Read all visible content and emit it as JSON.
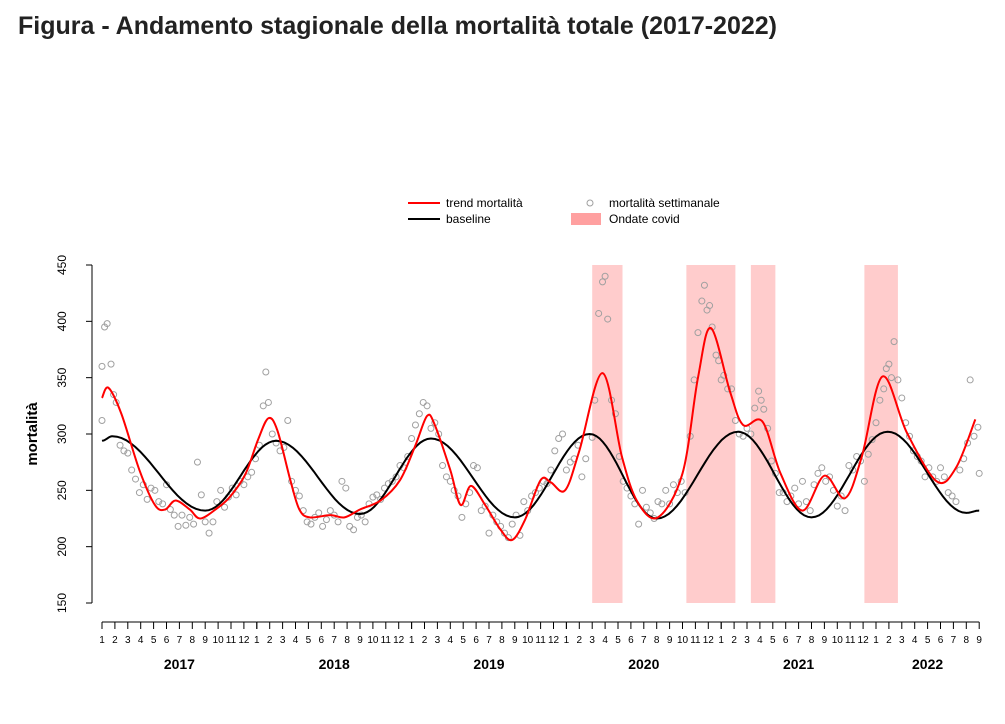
{
  "chart_data": {
    "type": "line",
    "title": "Figura - Andamento stagionale della mortalità totale (2017-2022)",
    "xlabel": "",
    "ylabel": "mortalità",
    "ylim": [
      150,
      450
    ],
    "yticks": [
      "150",
      "200",
      "250",
      "300",
      "350",
      "400",
      "450"
    ],
    "x_unit": "months since January 2017",
    "xlim": [
      0,
      68
    ],
    "years": [
      {
        "label": "2017",
        "months": [
          "1",
          "2",
          "3",
          "4",
          "5",
          "6",
          "7",
          "8",
          "9",
          "10",
          "11",
          "12"
        ]
      },
      {
        "label": "2018",
        "months": [
          "1",
          "2",
          "3",
          "4",
          "5",
          "6",
          "7",
          "8",
          "9",
          "10",
          "11",
          "12"
        ]
      },
      {
        "label": "2019",
        "months": [
          "1",
          "2",
          "3",
          "4",
          "5",
          "6",
          "7",
          "8",
          "9",
          "10",
          "11",
          "12"
        ]
      },
      {
        "label": "2020",
        "months": [
          "1",
          "2",
          "3",
          "4",
          "5",
          "6",
          "7",
          "8",
          "9",
          "10",
          "11",
          "12"
        ]
      },
      {
        "label": "2021",
        "months": [
          "1",
          "2",
          "3",
          "4",
          "5",
          "6",
          "7",
          "8",
          "9",
          "10",
          "11",
          "12"
        ]
      },
      {
        "label": "2022",
        "months": [
          "1",
          "2",
          "3",
          "4",
          "5",
          "6",
          "7",
          "8",
          "9"
        ]
      }
    ],
    "legend": {
      "placement": "top-center",
      "trend": "trend mortalità",
      "baseline": "baseline",
      "weekly": "mortalità settimanale",
      "covid": "Ondate covid"
    },
    "colors": {
      "trend": "#ff0000",
      "baseline": "#000000",
      "points": "#a0a0a0",
      "covid": "#ffcccc"
    },
    "covid_waves": [
      [
        38,
        40.35
      ],
      [
        45.3,
        49.1
      ],
      [
        50.3,
        52.2
      ],
      [
        59.1,
        61.7
      ]
    ],
    "trend": [
      [
        0,
        332
      ],
      [
        0.5,
        341
      ],
      [
        1.5,
        318
      ],
      [
        2.9,
        268
      ],
      [
        4.1,
        237
      ],
      [
        4.9,
        233
      ],
      [
        5.7,
        241
      ],
      [
        6.8,
        233
      ],
      [
        7.6,
        225
      ],
      [
        8.8,
        233
      ],
      [
        9.9,
        244
      ],
      [
        11.1,
        264
      ],
      [
        12.1,
        295
      ],
      [
        12.9,
        314
      ],
      [
        13.6,
        303
      ],
      [
        14.6,
        259
      ],
      [
        15.3,
        233
      ],
      [
        16.1,
        226
      ],
      [
        17.7,
        228
      ],
      [
        18.8,
        226
      ],
      [
        20,
        233
      ],
      [
        21.6,
        241
      ],
      [
        23.1,
        259
      ],
      [
        24.3,
        290
      ],
      [
        25.2,
        316
      ],
      [
        25.8,
        308
      ],
      [
        27,
        268
      ],
      [
        27.8,
        237
      ],
      [
        28.6,
        254
      ],
      [
        29.7,
        237
      ],
      [
        30.9,
        215
      ],
      [
        31.8,
        206
      ],
      [
        32.8,
        224
      ],
      [
        34,
        259
      ],
      [
        34.8,
        257
      ],
      [
        35.9,
        250
      ],
      [
        37,
        285
      ],
      [
        38.8,
        354
      ],
      [
        40.3,
        280
      ],
      [
        41.5,
        240
      ],
      [
        43.1,
        226
      ],
      [
        45,
        265
      ],
      [
        46.2,
        350
      ],
      [
        47.2,
        394
      ],
      [
        48.7,
        337
      ],
      [
        49.7,
        308
      ],
      [
        51.2,
        311
      ],
      [
        52.6,
        265
      ],
      [
        54.3,
        232
      ],
      [
        56,
        263
      ],
      [
        57.6,
        243
      ],
      [
        58.9,
        280
      ],
      [
        60.5,
        351
      ],
      [
        62.4,
        301
      ],
      [
        64.7,
        258
      ],
      [
        66.2,
        270
      ],
      [
        67.7,
        313
      ]
    ],
    "baseline": [
      [
        0,
        294
      ],
      [
        0.8,
        298
      ],
      [
        8,
        232
      ],
      [
        13.5,
        294
      ],
      [
        20,
        229
      ],
      [
        25.5,
        296
      ],
      [
        32,
        226
      ],
      [
        37.8,
        300
      ],
      [
        43,
        225
      ],
      [
        49.3,
        302
      ],
      [
        55,
        226
      ],
      [
        60.9,
        302
      ],
      [
        67,
        230
      ],
      [
        68,
        232
      ]
    ],
    "weekly": [
      [
        0,
        312
      ],
      [
        0,
        360
      ],
      [
        0.2,
        395
      ],
      [
        0.4,
        398
      ],
      [
        0.7,
        362
      ],
      [
        0.9,
        335
      ],
      [
        1.1,
        328
      ],
      [
        1.4,
        290
      ],
      [
        1.7,
        285
      ],
      [
        2,
        283
      ],
      [
        2.3,
        268
      ],
      [
        2.6,
        260
      ],
      [
        2.9,
        248
      ],
      [
        3.2,
        255
      ],
      [
        3.5,
        242
      ],
      [
        3.8,
        252
      ],
      [
        4.1,
        250
      ],
      [
        4.4,
        240
      ],
      [
        4.7,
        238
      ],
      [
        5,
        255
      ],
      [
        5.3,
        233
      ],
      [
        5.6,
        228
      ],
      [
        5.9,
        218
      ],
      [
        6.2,
        228
      ],
      [
        6.5,
        219
      ],
      [
        6.8,
        226
      ],
      [
        7.1,
        220
      ],
      [
        7.4,
        275
      ],
      [
        7.7,
        246
      ],
      [
        8,
        222
      ],
      [
        8.3,
        212
      ],
      [
        8.6,
        222
      ],
      [
        8.9,
        240
      ],
      [
        9.2,
        250
      ],
      [
        9.5,
        235
      ],
      [
        9.8,
        244
      ],
      [
        10.1,
        252
      ],
      [
        10.4,
        246
      ],
      [
        10.7,
        258
      ],
      [
        11,
        255
      ],
      [
        11.3,
        262
      ],
      [
        11.6,
        266
      ],
      [
        11.9,
        278
      ],
      [
        12.2,
        290
      ],
      [
        12.5,
        325
      ],
      [
        12.7,
        355
      ],
      [
        12.9,
        328
      ],
      [
        13.2,
        300
      ],
      [
        13.5,
        292
      ],
      [
        13.8,
        285
      ],
      [
        14.1,
        288
      ],
      [
        14.4,
        312
      ],
      [
        14.7,
        258
      ],
      [
        15,
        250
      ],
      [
        15.3,
        245
      ],
      [
        15.6,
        232
      ],
      [
        15.9,
        222
      ],
      [
        16.2,
        220
      ],
      [
        16.5,
        226
      ],
      [
        16.8,
        230
      ],
      [
        17.1,
        218
      ],
      [
        17.4,
        224
      ],
      [
        17.7,
        232
      ],
      [
        18,
        228
      ],
      [
        18.3,
        222
      ],
      [
        18.6,
        258
      ],
      [
        18.9,
        252
      ],
      [
        19.2,
        218
      ],
      [
        19.5,
        215
      ],
      [
        19.8,
        226
      ],
      [
        20.1,
        228
      ],
      [
        20.4,
        222
      ],
      [
        20.7,
        238
      ],
      [
        21,
        244
      ],
      [
        21.3,
        246
      ],
      [
        21.6,
        242
      ],
      [
        21.9,
        252
      ],
      [
        22.2,
        256
      ],
      [
        22.5,
        258
      ],
      [
        22.8,
        262
      ],
      [
        23.1,
        272
      ],
      [
        23.4,
        270
      ],
      [
        23.7,
        280
      ],
      [
        24,
        296
      ],
      [
        24.3,
        308
      ],
      [
        24.6,
        318
      ],
      [
        24.9,
        328
      ],
      [
        25.2,
        325
      ],
      [
        25.5,
        305
      ],
      [
        25.8,
        310
      ],
      [
        26.1,
        300
      ],
      [
        26.4,
        272
      ],
      [
        26.7,
        262
      ],
      [
        27,
        258
      ],
      [
        27.3,
        250
      ],
      [
        27.6,
        245
      ],
      [
        27.9,
        226
      ],
      [
        28.2,
        238
      ],
      [
        28.5,
        248
      ],
      [
        28.8,
        272
      ],
      [
        29.1,
        270
      ],
      [
        29.4,
        232
      ],
      [
        29.7,
        236
      ],
      [
        30,
        212
      ],
      [
        30.3,
        228
      ],
      [
        30.6,
        222
      ],
      [
        30.9,
        218
      ],
      [
        31.2,
        212
      ],
      [
        31.5,
        208
      ],
      [
        31.8,
        220
      ],
      [
        32.1,
        228
      ],
      [
        32.4,
        210
      ],
      [
        32.7,
        240
      ],
      [
        33,
        232
      ],
      [
        33.3,
        245
      ],
      [
        33.6,
        248
      ],
      [
        33.9,
        252
      ],
      [
        34.2,
        258
      ],
      [
        34.5,
        256
      ],
      [
        34.8,
        268
      ],
      [
        35.1,
        285
      ],
      [
        35.4,
        296
      ],
      [
        35.7,
        300
      ],
      [
        36,
        268
      ],
      [
        36.3,
        275
      ],
      [
        36.6,
        278
      ],
      [
        36.9,
        290
      ],
      [
        37.2,
        262
      ],
      [
        37.5,
        278
      ],
      [
        38,
        297
      ],
      [
        38.2,
        330
      ],
      [
        38.5,
        407
      ],
      [
        38.8,
        435
      ],
      [
        39,
        440
      ],
      [
        39.2,
        402
      ],
      [
        39.5,
        330
      ],
      [
        39.8,
        318
      ],
      [
        40.1,
        280
      ],
      [
        40.4,
        258
      ],
      [
        40.7,
        252
      ],
      [
        41,
        245
      ],
      [
        41.3,
        238
      ],
      [
        41.6,
        220
      ],
      [
        41.9,
        250
      ],
      [
        42.2,
        235
      ],
      [
        42.5,
        230
      ],
      [
        42.8,
        225
      ],
      [
        43.1,
        240
      ],
      [
        43.4,
        238
      ],
      [
        43.7,
        250
      ],
      [
        44,
        238
      ],
      [
        44.3,
        255
      ],
      [
        44.6,
        248
      ],
      [
        44.9,
        258
      ],
      [
        45.2,
        248
      ],
      [
        45.6,
        298
      ],
      [
        45.9,
        348
      ],
      [
        46.2,
        390
      ],
      [
        46.5,
        418
      ],
      [
        46.7,
        432
      ],
      [
        46.9,
        410
      ],
      [
        47.1,
        414
      ],
      [
        47.3,
        395
      ],
      [
        47.6,
        370
      ],
      [
        47.8,
        365
      ],
      [
        48,
        348
      ],
      [
        48.2,
        352
      ],
      [
        48.5,
        340
      ],
      [
        48.8,
        340
      ],
      [
        49.1,
        312
      ],
      [
        49.4,
        300
      ],
      [
        49.7,
        298
      ],
      [
        50,
        305
      ],
      [
        50.3,
        300
      ],
      [
        50.6,
        323
      ],
      [
        50.9,
        338
      ],
      [
        51.1,
        330
      ],
      [
        51.3,
        322
      ],
      [
        51.6,
        305
      ],
      [
        51.9,
        276
      ],
      [
        52.2,
        265
      ],
      [
        52.5,
        248
      ],
      [
        52.8,
        248
      ],
      [
        53.1,
        240
      ],
      [
        53.4,
        245
      ],
      [
        53.7,
        252
      ],
      [
        54,
        238
      ],
      [
        54.3,
        258
      ],
      [
        54.6,
        240
      ],
      [
        54.9,
        232
      ],
      [
        55.2,
        255
      ],
      [
        55.5,
        265
      ],
      [
        55.8,
        270
      ],
      [
        56.1,
        258
      ],
      [
        56.4,
        262
      ],
      [
        56.7,
        250
      ],
      [
        57,
        236
      ],
      [
        57.3,
        245
      ],
      [
        57.6,
        232
      ],
      [
        57.9,
        272
      ],
      [
        58.2,
        268
      ],
      [
        58.5,
        280
      ],
      [
        58.8,
        276
      ],
      [
        59.1,
        258
      ],
      [
        59.4,
        282
      ],
      [
        59.7,
        295
      ],
      [
        60,
        310
      ],
      [
        60.3,
        330
      ],
      [
        60.6,
        340
      ],
      [
        60.8,
        358
      ],
      [
        61,
        362
      ],
      [
        61.2,
        350
      ],
      [
        61.4,
        382
      ],
      [
        61.7,
        348
      ],
      [
        62,
        332
      ],
      [
        62.3,
        310
      ],
      [
        62.6,
        298
      ],
      [
        62.9,
        285
      ],
      [
        63.2,
        280
      ],
      [
        63.5,
        276
      ],
      [
        63.8,
        262
      ],
      [
        64.1,
        270
      ],
      [
        64.4,
        262
      ],
      [
        64.7,
        258
      ],
      [
        65,
        270
      ],
      [
        65.3,
        262
      ],
      [
        65.6,
        248
      ],
      [
        65.9,
        245
      ],
      [
        66.2,
        240
      ],
      [
        66.5,
        268
      ],
      [
        66.8,
        278
      ],
      [
        67.1,
        292
      ],
      [
        67.3,
        348
      ],
      [
        67.6,
        298
      ],
      [
        67.9,
        306
      ],
      [
        68,
        265
      ]
    ]
  }
}
